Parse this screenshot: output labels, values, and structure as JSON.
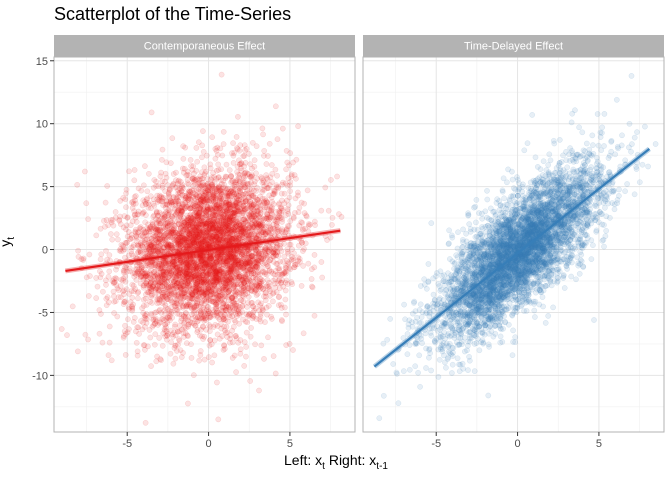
{
  "chart_data": {
    "type": "scatter",
    "title": "Scatterplot of the Time-Series",
    "xlabel": {
      "left_prefix": "Left: x",
      "left_sub": "t",
      "right_prefix": " Right: x",
      "right_sub": "t-1"
    },
    "ylabel": {
      "main": "y",
      "sub": "t"
    },
    "xlim": [
      -9.5,
      9.0
    ],
    "ylim": [
      -14.5,
      15.3
    ],
    "x_ticks": [
      -5,
      0,
      5
    ],
    "y_ticks": [
      -10,
      -5,
      0,
      5,
      10,
      15
    ],
    "grid": true,
    "panels": [
      {
        "strip": "Contemporaneous Effect",
        "color": "#e41a1c",
        "n_points": 5000,
        "spread_x": 2.5,
        "spread_y": 3.1,
        "fit": {
          "x": [
            -8.8,
            8.1
          ],
          "y": [
            -1.7,
            1.5
          ]
        },
        "outliers": [
          [
            0.8,
            13.9
          ],
          [
            0.6,
            -13.5
          ],
          [
            -8.7,
            -6.8
          ],
          [
            7.9,
            5.8
          ],
          [
            -7.6,
            6.2
          ],
          [
            5.5,
            9.8
          ],
          [
            -3.5,
            10.9
          ],
          [
            3.1,
            -11.2
          ]
        ]
      },
      {
        "strip": "Time-Delayed Effect",
        "color": "#377eb8",
        "n_points": 5000,
        "spread_x": 2.5,
        "spread_y": 2.2,
        "fit": {
          "x": [
            -8.8,
            8.1
          ],
          "y": [
            -9.3,
            8.0
          ]
        },
        "outliers": [
          [
            7.0,
            13.8
          ],
          [
            -8.5,
            -13.4
          ],
          [
            -7.3,
            -7.9
          ],
          [
            6.1,
            11.9
          ],
          [
            -5.3,
            2.1
          ],
          [
            4.7,
            -5.6
          ],
          [
            0.9,
            10.7
          ],
          [
            -1.8,
            -11.6
          ]
        ]
      }
    ]
  }
}
